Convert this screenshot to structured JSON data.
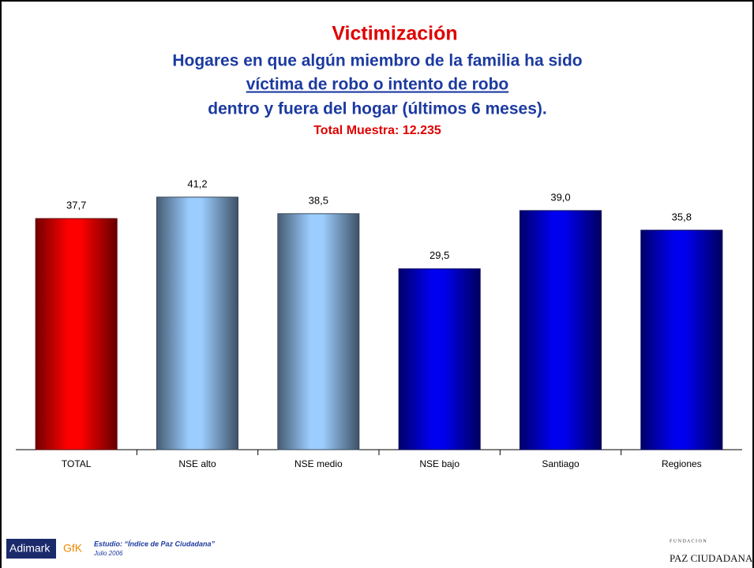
{
  "chart_data": {
    "type": "bar",
    "title": "Victimización",
    "subtitle": [
      "Hogares en que algún miembro de la familia ha sido",
      "víctima de robo o intento de robo",
      "dentro y fuera del hogar (últimos 6 meses)."
    ],
    "sample": "Total Muestra: 12.235",
    "categories": [
      "TOTAL",
      "NSE alto",
      "NSE medio",
      "NSE bajo",
      "Santiago",
      "Regiones"
    ],
    "values": [
      37.7,
      41.2,
      38.5,
      29.5,
      39.0,
      35.8
    ],
    "value_labels": [
      "37,7",
      "41,2",
      "38,5",
      "29,5",
      "39,0",
      "35,8"
    ],
    "colors": [
      "#ff0000",
      "#9ccdff",
      "#9ccdff",
      "#0000ee",
      "#0000ee",
      "#0000ee"
    ]
  },
  "footer": {
    "brand": "Adimark",
    "brand2": "GfK",
    "study": "Estudio: “Índice de Paz Ciudadana”",
    "date": "Julio 2006",
    "foundation": "F U N D A C I O N",
    "org": "PAZ CIUDADANA"
  }
}
